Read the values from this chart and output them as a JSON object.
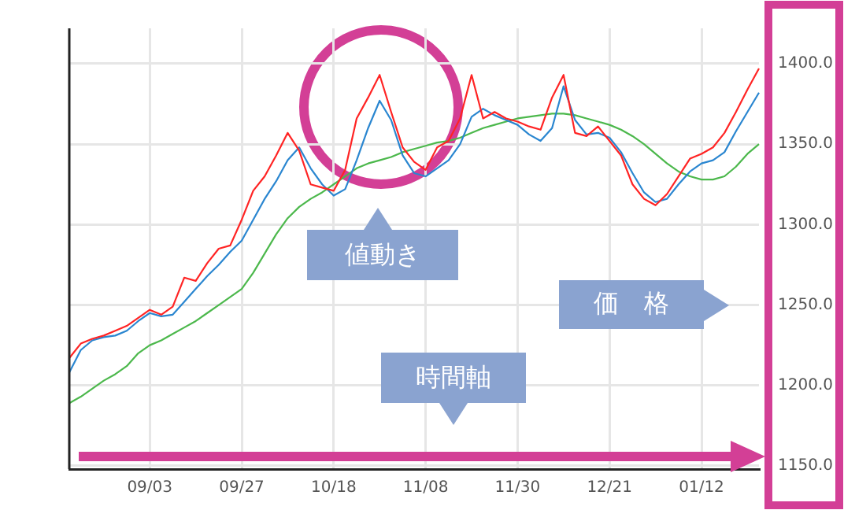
{
  "chart_data": {
    "type": "line",
    "categories": [
      null,
      null,
      null,
      null,
      null,
      null,
      null,
      "09/03",
      null,
      null,
      null,
      null,
      null,
      null,
      null,
      "09/27",
      null,
      null,
      null,
      null,
      null,
      null,
      null,
      "10/18",
      null,
      null,
      null,
      null,
      null,
      null,
      null,
      "11/08",
      null,
      null,
      null,
      null,
      null,
      null,
      null,
      "11/30",
      null,
      null,
      null,
      null,
      null,
      null,
      null,
      "12/21",
      null,
      null,
      null,
      null,
      null,
      null,
      null,
      "01/12",
      null,
      null,
      null,
      null,
      null
    ],
    "series": [
      {
        "color": "#ff2424",
        "values": [
          1217,
          1226,
          1229,
          1231,
          1234,
          1237,
          1242,
          1247,
          1244,
          1249,
          1267,
          1265,
          1276,
          1285,
          1287,
          1303,
          1321,
          1330,
          1343,
          1357,
          1346,
          1325,
          1323,
          1321,
          1334,
          1366,
          1379,
          1393,
          1370,
          1348,
          1339,
          1334,
          1348,
          1352,
          1366,
          1393,
          1366,
          1370,
          1366,
          1364,
          1361,
          1359,
          1379,
          1393,
          1357,
          1355,
          1361,
          1352,
          1343,
          1325,
          1316,
          1312,
          1319,
          1330,
          1341,
          1344,
          1348,
          1357,
          1370,
          1384,
          1397
        ]
      },
      {
        "color": "#2a86d0",
        "values": [
          1208,
          1222,
          1228,
          1230,
          1231,
          1234,
          1240,
          1245,
          1243,
          1244,
          1252,
          1260,
          1268,
          1275,
          1283,
          1290,
          1303,
          1316,
          1327,
          1340,
          1348,
          1335,
          1325,
          1318,
          1322,
          1340,
          1360,
          1377,
          1365,
          1343,
          1332,
          1330,
          1335,
          1340,
          1350,
          1367,
          1372,
          1368,
          1365,
          1362,
          1356,
          1352,
          1360,
          1386,
          1365,
          1356,
          1357,
          1354,
          1345,
          1332,
          1320,
          1314,
          1316,
          1325,
          1333,
          1338,
          1340,
          1345,
          1358,
          1370,
          1382
        ]
      },
      {
        "color": "#4cb84c",
        "values": [
          1189,
          1193,
          1198,
          1203,
          1207,
          1212,
          1220,
          1225,
          1228,
          1232,
          1236,
          1240,
          1245,
          1250,
          1255,
          1260,
          1270,
          1282,
          1294,
          1304,
          1311,
          1316,
          1320,
          1325,
          1330,
          1335,
          1338,
          1340,
          1342,
          1345,
          1347,
          1349,
          1351,
          1352,
          1354,
          1357,
          1360,
          1362,
          1364,
          1366,
          1367,
          1368,
          1369,
          1369,
          1368,
          1366,
          1364,
          1362,
          1359,
          1355,
          1350,
          1344,
          1338,
          1333,
          1330,
          1328,
          1328,
          1330,
          1336,
          1344,
          1350
        ]
      }
    ],
    "ylim": [
      1148,
      1422
    ],
    "yticks": [
      {
        "value": 1150,
        "label": "1150.0"
      },
      {
        "value": 1200,
        "label": "1200.0"
      },
      {
        "value": 1250,
        "label": "1250.0"
      },
      {
        "value": 1300,
        "label": "1300.0"
      },
      {
        "value": 1350,
        "label": "1350.0"
      },
      {
        "value": 1400,
        "label": "1400.0"
      }
    ],
    "grid": true,
    "legend": false,
    "marker": "none",
    "line_style": "solid",
    "annotations": [
      "値動き",
      "時間軸",
      "価　格"
    ]
  }
}
